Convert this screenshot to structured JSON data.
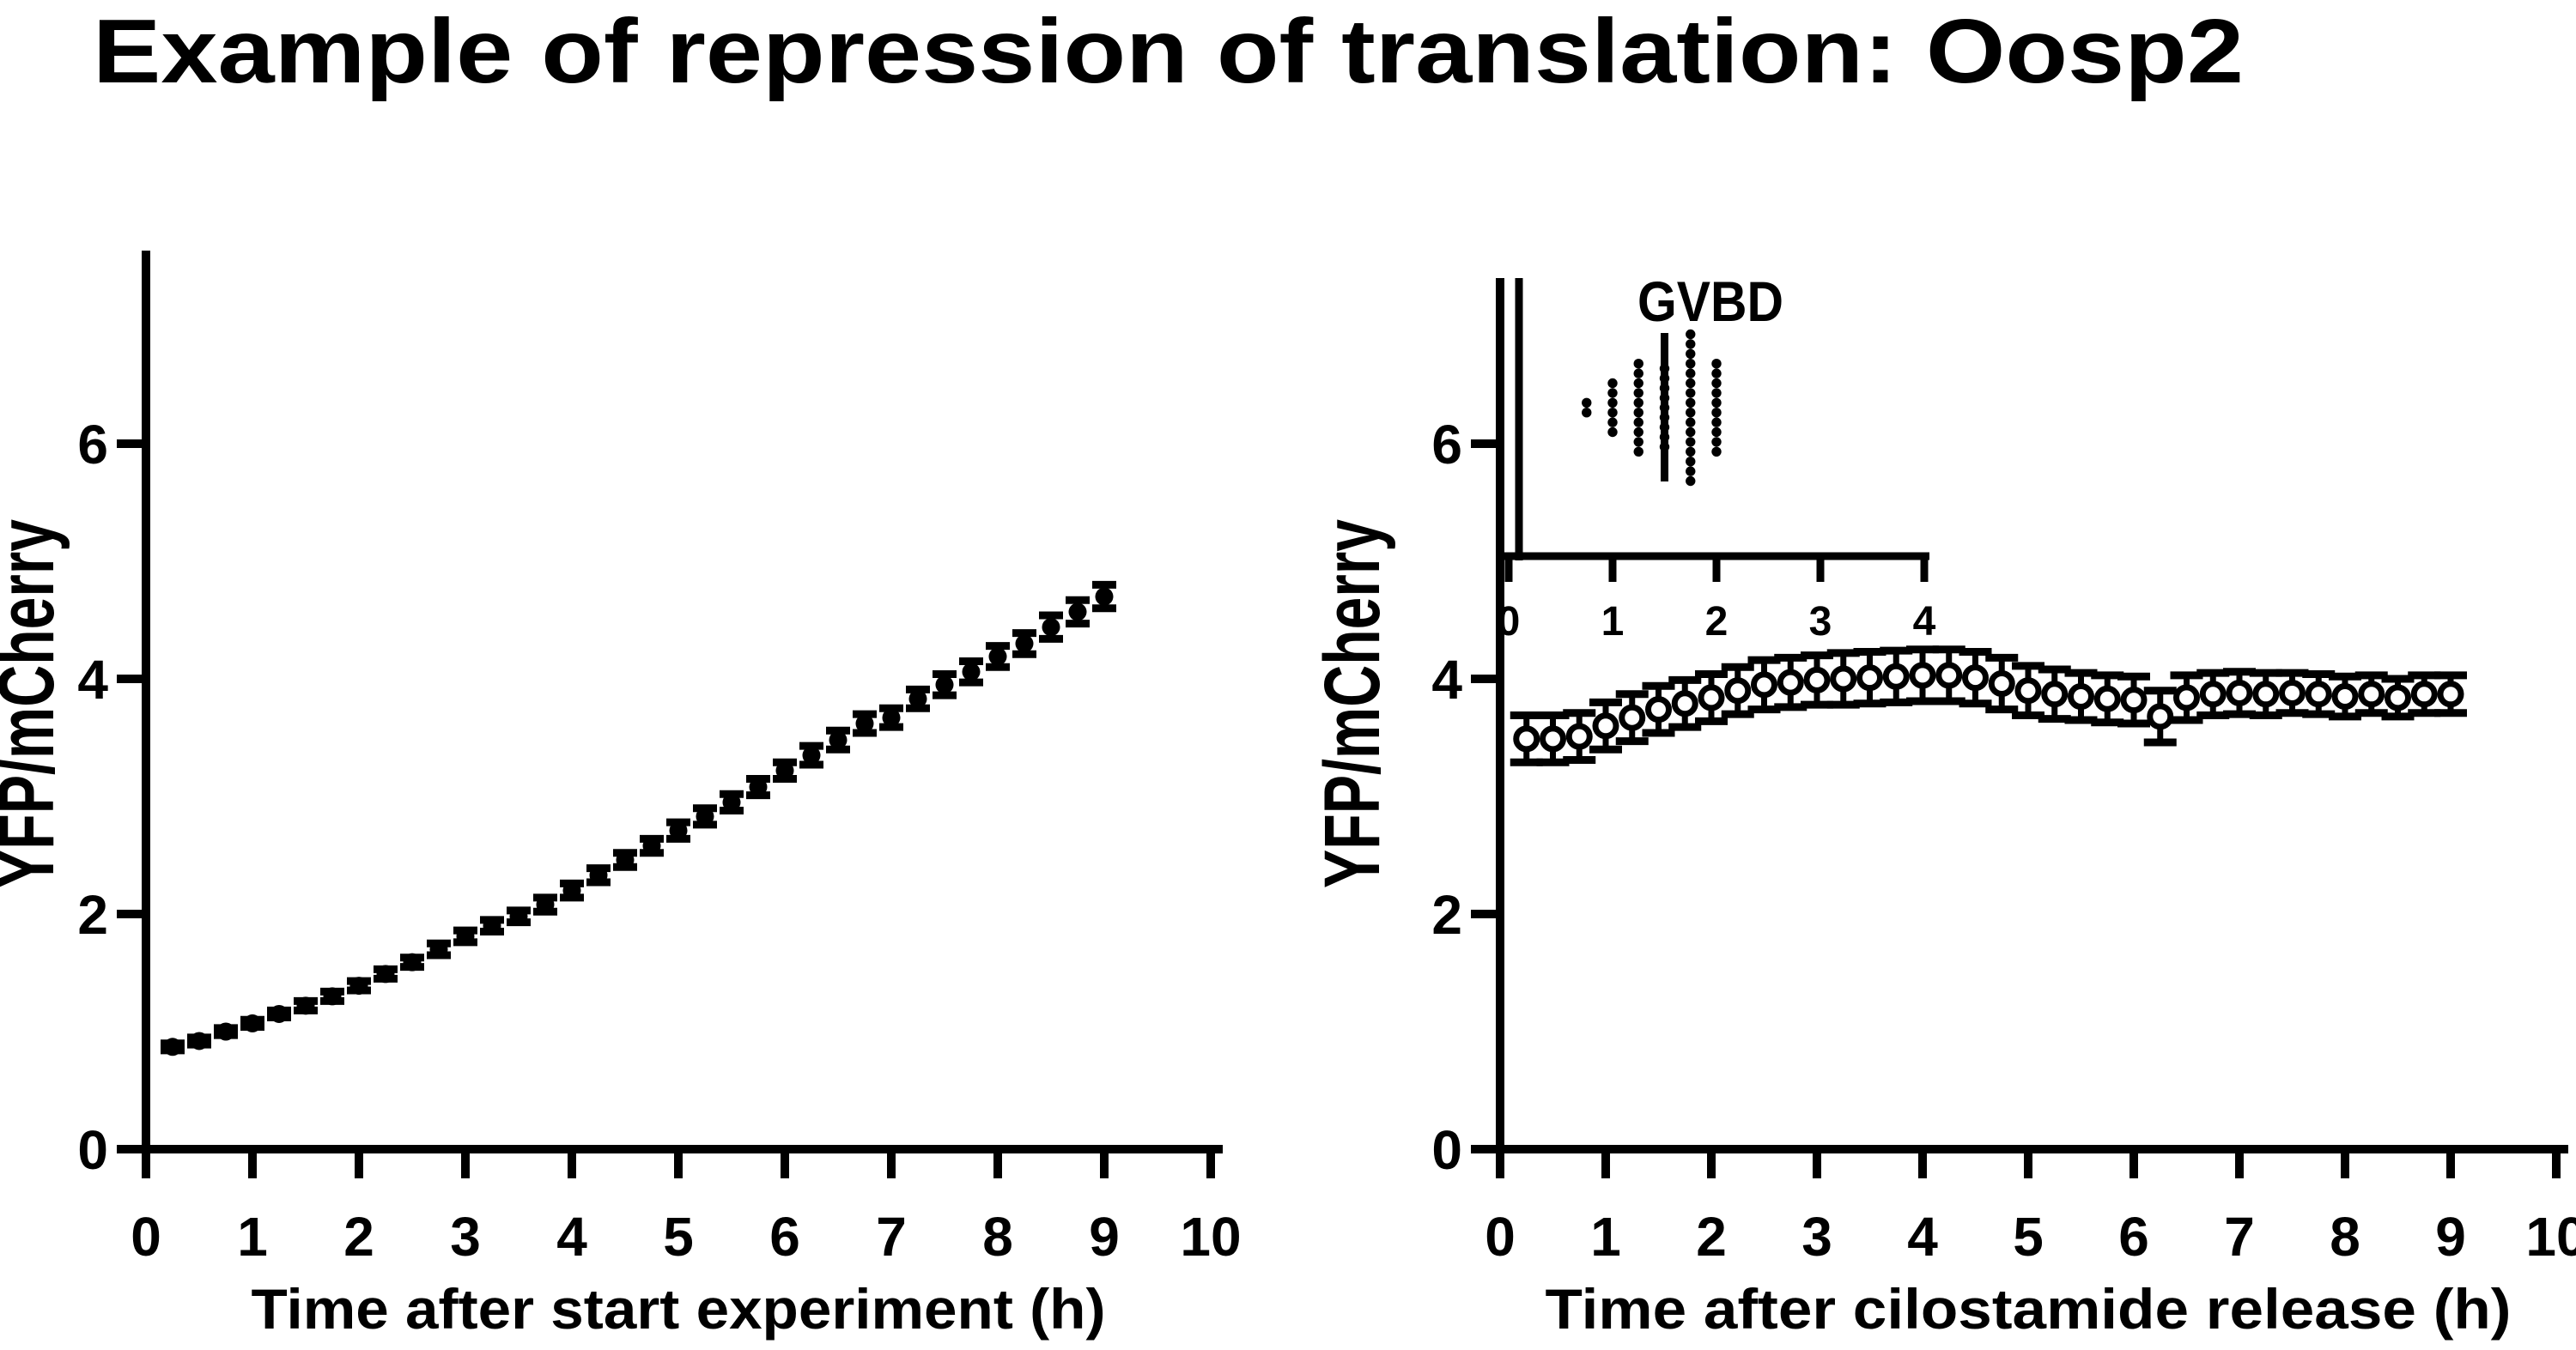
{
  "title": "Example of repression of translation: Oosp2",
  "colors": {
    "foreground": "#000000",
    "background": "#ffffff"
  },
  "chart_data": [
    {
      "id": "left-panel",
      "type": "scatter",
      "marker": "filled-circle",
      "title": "",
      "xlabel": "Time after start experiment (h)",
      "ylabel": "YFP/mCherry",
      "xlim": [
        0,
        10.15
      ],
      "ylim": [
        0,
        7.6
      ],
      "xticks": [
        0,
        1,
        2,
        3,
        4,
        5,
        6,
        7,
        8,
        9,
        10
      ],
      "yticks": [
        0,
        2,
        4,
        6
      ],
      "grid": false,
      "x": [
        0.25,
        0.5,
        0.75,
        1,
        1.25,
        1.5,
        1.75,
        2,
        2.25,
        2.5,
        2.75,
        3,
        3.25,
        3.5,
        3.75,
        4,
        4.25,
        4.5,
        4.75,
        5,
        5.25,
        5.5,
        5.75,
        6,
        6.25,
        6.5,
        6.75,
        7,
        7.25,
        7.5,
        7.75,
        8,
        8.25,
        8.5,
        8.75,
        9
      ],
      "y": [
        0.87,
        0.92,
        1.0,
        1.07,
        1.15,
        1.22,
        1.3,
        1.39,
        1.49,
        1.59,
        1.7,
        1.81,
        1.9,
        1.98,
        2.08,
        2.2,
        2.33,
        2.46,
        2.58,
        2.71,
        2.83,
        2.95,
        3.08,
        3.22,
        3.35,
        3.48,
        3.62,
        3.67,
        3.83,
        3.95,
        4.06,
        4.19,
        4.3,
        4.44,
        4.57,
        4.7
      ],
      "sem": [
        0.03,
        0.03,
        0.03,
        0.03,
        0.03,
        0.04,
        0.04,
        0.04,
        0.04,
        0.04,
        0.05,
        0.05,
        0.05,
        0.05,
        0.06,
        0.06,
        0.06,
        0.06,
        0.06,
        0.07,
        0.07,
        0.07,
        0.07,
        0.07,
        0.08,
        0.08,
        0.08,
        0.08,
        0.08,
        0.09,
        0.09,
        0.09,
        0.09,
        0.1,
        0.1,
        0.1
      ]
    },
    {
      "id": "right-panel",
      "type": "scatter",
      "marker": "open-circle",
      "title": "",
      "xlabel": "Time after cilostamide release (h)",
      "ylabel": "YFP/mCherry",
      "xlim": [
        0,
        10.15
      ],
      "ylim": [
        0,
        7.6
      ],
      "xticks": [
        0,
        1,
        2,
        3,
        4,
        5,
        6,
        7,
        8,
        9,
        10
      ],
      "yticks": [
        0,
        2,
        4,
        6
      ],
      "grid": false,
      "x": [
        0.25,
        0.5,
        0.75,
        1,
        1.25,
        1.5,
        1.75,
        2,
        2.25,
        2.5,
        2.75,
        3,
        3.25,
        3.5,
        3.75,
        4,
        4.25,
        4.5,
        4.75,
        5,
        5.25,
        5.5,
        5.75,
        6,
        6.25,
        6.5,
        6.75,
        7,
        7.25,
        7.5,
        7.75,
        8,
        8.25,
        8.5,
        8.75,
        9
      ],
      "y": [
        3.49,
        3.49,
        3.51,
        3.6,
        3.67,
        3.74,
        3.79,
        3.84,
        3.9,
        3.95,
        3.97,
        3.99,
        4.0,
        4.01,
        4.02,
        4.03,
        4.03,
        4.01,
        3.96,
        3.9,
        3.87,
        3.85,
        3.83,
        3.82,
        3.68,
        3.84,
        3.87,
        3.88,
        3.87,
        3.88,
        3.87,
        3.85,
        3.87,
        3.84,
        3.87,
        3.87
      ],
      "sem": [
        0.2,
        0.2,
        0.2,
        0.2,
        0.2,
        0.2,
        0.2,
        0.2,
        0.2,
        0.21,
        0.21,
        0.21,
        0.22,
        0.22,
        0.22,
        0.22,
        0.22,
        0.22,
        0.22,
        0.21,
        0.21,
        0.2,
        0.2,
        0.2,
        0.22,
        0.19,
        0.18,
        0.18,
        0.18,
        0.17,
        0.17,
        0.17,
        0.16,
        0.16,
        0.16,
        0.16
      ]
    },
    {
      "id": "gvbd-inset",
      "type": "dot-histogram",
      "title": "GVBD",
      "xlabel": "",
      "xlim": [
        0,
        4.1
      ],
      "xticks": [
        0,
        1,
        2,
        3,
        4
      ],
      "columns": [
        {
          "x": 0.75,
          "count": 2
        },
        {
          "x": 1.0,
          "count": 6
        },
        {
          "x": 1.25,
          "count": 10
        },
        {
          "x": 1.5,
          "count": 9
        },
        {
          "x": 1.75,
          "count": 16
        },
        {
          "x": 2.0,
          "count": 10
        }
      ],
      "median_x": 1.5
    }
  ]
}
